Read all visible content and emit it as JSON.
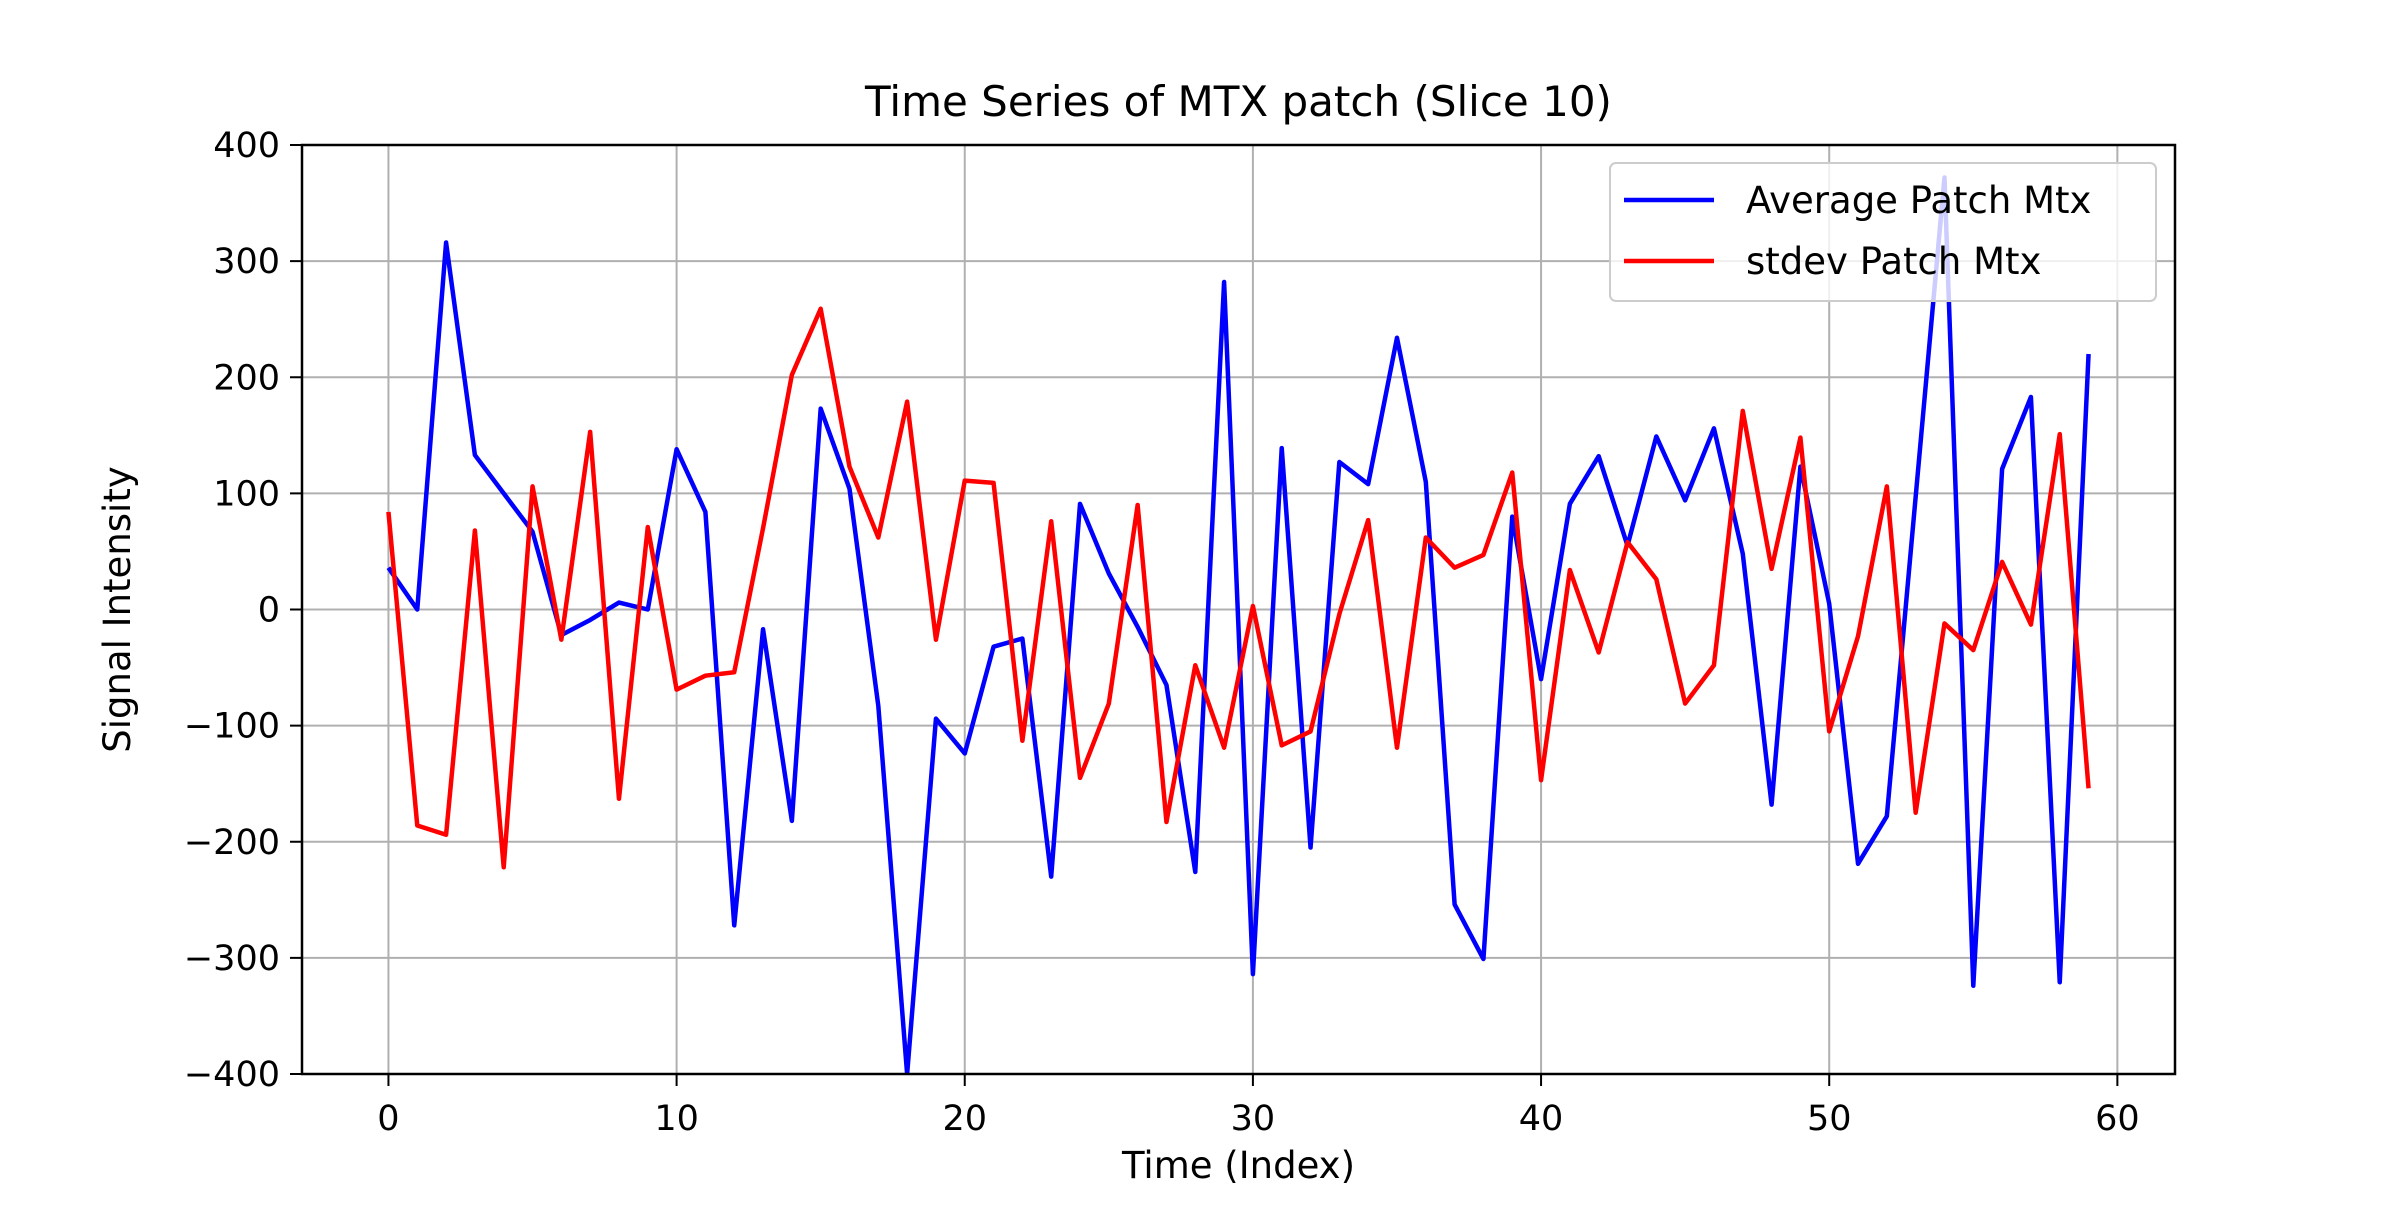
{
  "chart_data": {
    "type": "line",
    "title": "Time Series of MTX patch (Slice 10)",
    "xlabel": "Time (Index)",
    "ylabel": "Signal Intensity",
    "xlim": [
      -3,
      62
    ],
    "ylim": [
      -400,
      400
    ],
    "xticks": [
      0,
      10,
      20,
      30,
      40,
      50,
      60
    ],
    "xtick_labels": [
      "0",
      "10",
      "20",
      "30",
      "40",
      "50",
      "60"
    ],
    "yticks": [
      -400,
      -300,
      -200,
      -100,
      0,
      100,
      200,
      300,
      400
    ],
    "ytick_labels": [
      "−400",
      "−300",
      "−200",
      "−100",
      "0",
      "100",
      "200",
      "300",
      "400"
    ],
    "grid": true,
    "legend_position": "top-right",
    "x": [
      0,
      1,
      2,
      3,
      4,
      5,
      6,
      7,
      8,
      9,
      10,
      11,
      12,
      13,
      14,
      15,
      16,
      17,
      18,
      19,
      20,
      21,
      22,
      23,
      24,
      25,
      26,
      27,
      28,
      29,
      30,
      31,
      32,
      33,
      34,
      35,
      36,
      37,
      38,
      39,
      40,
      41,
      42,
      43,
      44,
      45,
      46,
      47,
      48,
      49,
      50,
      51,
      52,
      53,
      54,
      55,
      56,
      57,
      58,
      59
    ],
    "series": [
      {
        "name": "Average Patch Mtx",
        "color": "#0000ff",
        "values": [
          36,
          0,
          316,
          133,
          100,
          67,
          -22,
          -9,
          6,
          0,
          138,
          84,
          -272,
          -17,
          -182,
          173,
          104,
          -83,
          -400,
          -94,
          -124,
          -32,
          -25,
          -230,
          91,
          31,
          -15,
          -65,
          -226,
          282,
          -314,
          139,
          -205,
          127,
          108,
          234,
          110,
          -254,
          -301,
          80,
          -60,
          91,
          132,
          55,
          149,
          94,
          156,
          48,
          -168,
          123,
          5,
          -219,
          -178,
          97,
          372,
          -324,
          121,
          183,
          -321,
          220
        ]
      },
      {
        "name": "stdev Patch Mtx",
        "color": "#ff0000",
        "values": [
          84,
          -186,
          -194,
          68,
          -222,
          106,
          -26,
          153,
          -163,
          71,
          -69,
          -57,
          -54,
          70,
          202,
          259,
          123,
          62,
          179,
          -26,
          111,
          109,
          -113,
          76,
          -145,
          -81,
          90,
          -183,
          -48,
          -119,
          3,
          -117,
          -105,
          -4,
          77,
          -119,
          62,
          36,
          47,
          118,
          -147,
          34,
          -37,
          58,
          26,
          -81,
          -48,
          171,
          35,
          148,
          -105,
          -23,
          106,
          -175,
          -12,
          -35,
          41,
          -13,
          151,
          -154
        ]
      }
    ]
  }
}
